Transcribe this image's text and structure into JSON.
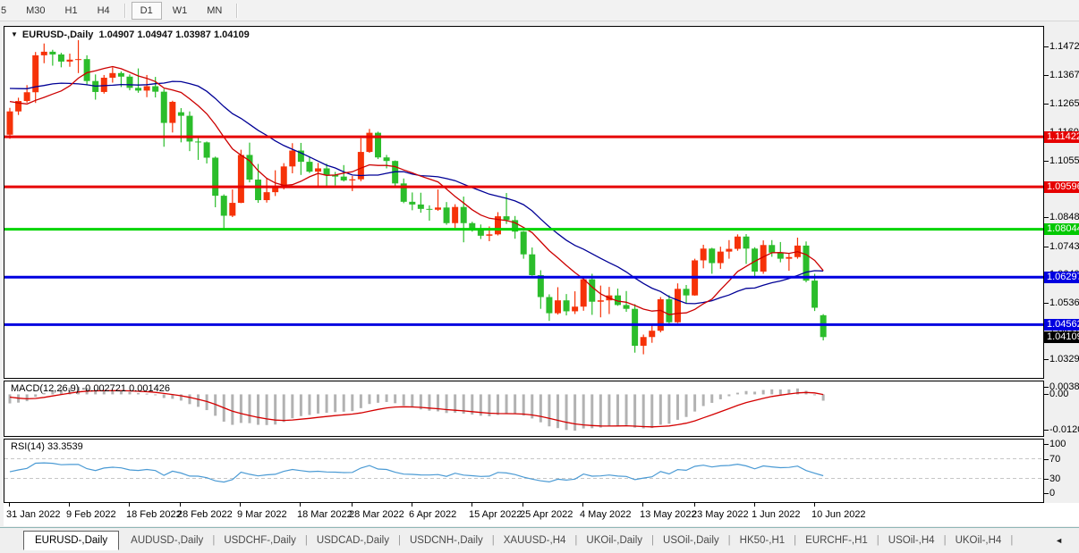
{
  "toolbar": {
    "timeframes": [
      {
        "label": "5",
        "active": false
      },
      {
        "label": "M30",
        "active": false
      },
      {
        "label": "H1",
        "active": false
      },
      {
        "label": "H4",
        "active": false
      },
      {
        "label": "D1",
        "active": true
      },
      {
        "label": "W1",
        "active": false
      },
      {
        "label": "MN",
        "active": false
      }
    ]
  },
  "chart": {
    "title": {
      "symbol": "EURUSD-,Daily",
      "ohlc": "1.04907 1.04947 1.03987 1.04109"
    },
    "price_axis": {
      "ticks": [
        "1.14720",
        "1.13670",
        "1.12650",
        "1.11600",
        "1.10550",
        "1.09530",
        "1.08480",
        "1.07430",
        "1.06400",
        "1.05360",
        "1.04310",
        "1.03290"
      ],
      "badges": [
        {
          "value": "1.11422",
          "price": 1.11422,
          "color": "#e60000"
        },
        {
          "value": "1.09596",
          "price": 1.09596,
          "color": "#e60000"
        },
        {
          "value": "1.08044",
          "price": 1.08044,
          "color": "#00c800"
        },
        {
          "value": "1.06297",
          "price": 1.06297,
          "color": "#0000e0"
        },
        {
          "value": "1.04562",
          "price": 1.04562,
          "color": "#0000e0"
        },
        {
          "value": "1.04109",
          "price": 1.04109,
          "color": "#000000"
        }
      ]
    },
    "hlines": [
      {
        "price": 1.11422,
        "color": "#e60000"
      },
      {
        "price": 1.09596,
        "color": "#e60000"
      },
      {
        "price": 1.08044,
        "color": "#00d400"
      },
      {
        "price": 1.06297,
        "color": "#0000e0"
      },
      {
        "price": 1.04562,
        "color": "#0000e0"
      }
    ],
    "dates": [
      {
        "label": "31 Jan 2022",
        "bar": 0
      },
      {
        "label": "9 Feb 2022",
        "bar": 7
      },
      {
        "label": "18 Feb 2022",
        "bar": 14
      },
      {
        "label": "28 Feb 2022",
        "bar": 20
      },
      {
        "label": "9 Mar 2022",
        "bar": 27
      },
      {
        "label": "18 Mar 2022",
        "bar": 34
      },
      {
        "label": "28 Mar 2022",
        "bar": 40
      },
      {
        "label": "6 Apr 2022",
        "bar": 47
      },
      {
        "label": "15 Apr 2022",
        "bar": 54
      },
      {
        "label": "25 Apr 2022",
        "bar": 60
      },
      {
        "label": "4 May 2022",
        "bar": 67
      },
      {
        "label": "13 May 2022",
        "bar": 74
      },
      {
        "label": "23 May 2022",
        "bar": 80
      },
      {
        "label": "1 Jun 2022",
        "bar": 87
      },
      {
        "label": "10 Jun 2022",
        "bar": 94
      }
    ],
    "ma": {
      "fast_period": 10,
      "slow_period": 20
    },
    "warmup_closes": [
      1.132,
      1.1299,
      1.1311,
      1.1286,
      1.1241,
      1.1268,
      1.1334,
      1.1294,
      1.1288,
      1.1317,
      1.1286,
      1.126,
      1.1288,
      1.1328,
      1.1323,
      1.1328,
      1.1327,
      1.1316,
      1.131,
      1.1325,
      1.137,
      1.1297,
      1.1285,
      1.1312,
      1.1295,
      1.136,
      1.1328,
      1.1367,
      1.1443,
      1.1455,
      1.1413,
      1.1406,
      1.1325,
      1.1343,
      1.1307,
      1.1344,
      1.1325,
      1.1301,
      1.124,
      1.1144,
      1.1148
    ],
    "candles": [
      [
        1.115,
        1.1248,
        1.1135,
        1.1235
      ],
      [
        1.1235,
        1.1285,
        1.1222,
        1.1273
      ],
      [
        1.1273,
        1.1331,
        1.1267,
        1.1305
      ],
      [
        1.1305,
        1.1452,
        1.1266,
        1.144
      ],
      [
        1.144,
        1.1483,
        1.1411,
        1.1453
      ],
      [
        1.1453,
        1.146,
        1.1402,
        1.1443
      ],
      [
        1.1443,
        1.1449,
        1.1396,
        1.1417
      ],
      [
        1.1417,
        1.1446,
        1.1398,
        1.1424
      ],
      [
        1.1424,
        1.1495,
        1.1375,
        1.1426
      ],
      [
        1.1426,
        1.144,
        1.133,
        1.1346
      ],
      [
        1.1346,
        1.137,
        1.1278,
        1.1306
      ],
      [
        1.1306,
        1.1368,
        1.13,
        1.1358
      ],
      [
        1.1358,
        1.1396,
        1.134,
        1.1375
      ],
      [
        1.1375,
        1.1381,
        1.1324,
        1.1362
      ],
      [
        1.1362,
        1.137,
        1.1312,
        1.1321
      ],
      [
        1.1321,
        1.1392,
        1.1303,
        1.1311
      ],
      [
        1.1311,
        1.1368,
        1.1287,
        1.1327
      ],
      [
        1.1327,
        1.1361,
        1.1286,
        1.1307
      ],
      [
        1.1307,
        1.1317,
        1.1106,
        1.1193
      ],
      [
        1.1193,
        1.1274,
        1.1158,
        1.127
      ],
      [
        1.1232,
        1.1247,
        1.1122,
        1.1219
      ],
      [
        1.1219,
        1.1235,
        1.109,
        1.1125
      ],
      [
        1.1125,
        1.1146,
        1.1058,
        1.1122
      ],
      [
        1.1122,
        1.1125,
        1.1045,
        1.1066
      ],
      [
        1.1066,
        1.107,
        1.0885,
        1.0927
      ],
      [
        1.0927,
        1.0932,
        1.0806,
        1.0854
      ],
      [
        1.0854,
        1.095,
        1.0849,
        1.0901
      ],
      [
        1.0901,
        1.1095,
        1.09,
        1.1076
      ],
      [
        1.1076,
        1.1121,
        1.0976,
        1.0986
      ],
      [
        1.0986,
        1.1043,
        1.0901,
        1.0911
      ],
      [
        1.0911,
        1.0992,
        1.0902,
        1.094
      ],
      [
        1.094,
        1.102,
        1.0926,
        1.0955
      ],
      [
        1.0955,
        1.1046,
        1.095,
        1.1034
      ],
      [
        1.1034,
        1.1119,
        1.1009,
        1.1092
      ],
      [
        1.1092,
        1.112,
        1.1003,
        1.1051
      ],
      [
        1.1051,
        1.1069,
        1.101,
        1.1015
      ],
      [
        1.1015,
        1.1047,
        1.0962,
        1.1027
      ],
      [
        1.1027,
        1.1044,
        1.0963,
        1.1004
      ],
      [
        1.1004,
        1.1014,
        1.0965,
        1.0997
      ],
      [
        1.0997,
        1.1039,
        1.0979,
        1.0983
      ],
      [
        1.0983,
        1.0999,
        1.0944,
        1.0987
      ],
      [
        1.0987,
        1.1137,
        1.098,
        1.1087
      ],
      [
        1.1087,
        1.1171,
        1.1084,
        1.1157
      ],
      [
        1.1157,
        1.1161,
        1.1061,
        1.1067
      ],
      [
        1.1067,
        1.1076,
        1.1027,
        1.1054
      ],
      [
        1.1054,
        1.1056,
        1.0961,
        1.0972
      ],
      [
        1.0972,
        1.099,
        1.09,
        1.0905
      ],
      [
        1.0905,
        1.0939,
        1.0874,
        1.0895
      ],
      [
        1.0895,
        1.0938,
        1.0865,
        1.0879
      ],
      [
        1.0879,
        1.0892,
        1.0836,
        1.0876
      ],
      [
        1.0876,
        1.095,
        1.0872,
        1.0884
      ],
      [
        1.0884,
        1.0904,
        1.0821,
        1.0827
      ],
      [
        1.0827,
        1.0896,
        1.0809,
        1.0886
      ],
      [
        1.0886,
        1.0924,
        1.0757,
        1.0827
      ],
      [
        1.0827,
        1.0832,
        1.0796,
        1.0807
      ],
      [
        1.0807,
        1.0822,
        1.0769,
        1.0781
      ],
      [
        1.0781,
        1.0815,
        1.0761,
        1.0786
      ],
      [
        1.0786,
        1.0867,
        1.0782,
        1.0852
      ],
      [
        1.0852,
        1.0937,
        1.0824,
        1.0838
      ],
      [
        1.0838,
        1.0853,
        1.077,
        1.0796
      ],
      [
        1.0796,
        1.0798,
        1.0697,
        1.0713
      ],
      [
        1.0713,
        1.0738,
        1.0635,
        1.0637
      ],
      [
        1.0637,
        1.0655,
        1.0514,
        1.0557
      ],
      [
        1.0557,
        1.0567,
        1.047,
        1.0498
      ],
      [
        1.0498,
        1.0593,
        1.0493,
        1.0545
      ],
      [
        1.0545,
        1.0568,
        1.049,
        1.0505
      ],
      [
        1.0505,
        1.0578,
        1.0495,
        1.0522
      ],
      [
        1.0522,
        1.0632,
        1.0507,
        1.0622
      ],
      [
        1.0622,
        1.0642,
        1.0492,
        1.054
      ],
      [
        1.054,
        1.0599,
        1.0483,
        1.0545
      ],
      [
        1.0545,
        1.0594,
        1.0495,
        1.0563
      ],
      [
        1.0563,
        1.0588,
        1.0525,
        1.0528
      ],
      [
        1.0528,
        1.0579,
        1.0503,
        1.0514
      ],
      [
        1.0514,
        1.0531,
        1.0354,
        1.0379
      ],
      [
        1.0379,
        1.042,
        1.0348,
        1.0411
      ],
      [
        1.0411,
        1.0457,
        1.039,
        1.0434
      ],
      [
        1.0434,
        1.0557,
        1.0428,
        1.0549
      ],
      [
        1.0549,
        1.0564,
        1.0461,
        1.0465
      ],
      [
        1.0465,
        1.0607,
        1.0462,
        1.0587
      ],
      [
        1.0587,
        1.0601,
        1.0534,
        1.0563
      ],
      [
        1.0563,
        1.0697,
        1.0562,
        1.0691
      ],
      [
        1.0691,
        1.0748,
        1.0662,
        1.0734
      ],
      [
        1.0734,
        1.0737,
        1.0642,
        1.0681
      ],
      [
        1.0681,
        1.0741,
        1.066,
        1.0723
      ],
      [
        1.0723,
        1.0765,
        1.0697,
        1.0733
      ],
      [
        1.0733,
        1.0786,
        1.0726,
        1.0778
      ],
      [
        1.0778,
        1.0787,
        1.0678,
        1.0734
      ],
      [
        1.0734,
        1.0739,
        1.0627,
        1.065
      ],
      [
        1.065,
        1.0764,
        1.0642,
        1.0747
      ],
      [
        1.0747,
        1.0765,
        1.0704,
        1.0719
      ],
      [
        1.0719,
        1.0758,
        1.0684,
        1.0697
      ],
      [
        1.0697,
        1.0715,
        1.0653,
        1.0703
      ],
      [
        1.0703,
        1.0774,
        1.0697,
        1.0745
      ],
      [
        1.0745,
        1.076,
        1.0611,
        1.0617
      ],
      [
        1.0617,
        1.0642,
        1.0506,
        1.0518
      ],
      [
        1.04907,
        1.04947,
        1.03987,
        1.04109
      ]
    ]
  },
  "macd": {
    "label": "MACD(12,26,9)",
    "values": "-0.002721 0.001426",
    "params": {
      "fast": 12,
      "slow": 26,
      "signal": 9
    },
    "axis": [
      {
        "value": "0.003865",
        "num": 0.003865
      },
      {
        "value": "0.00",
        "num": 0
      },
      {
        "value": "-0.01208",
        "num": -0.01208
      }
    ]
  },
  "rsi": {
    "label": "RSI(14)",
    "value": "33.3539",
    "period": 14,
    "levels": [
      70,
      30
    ],
    "axis": [
      {
        "value": "100",
        "num": 100
      },
      {
        "value": "70",
        "num": 70
      },
      {
        "value": "30",
        "num": 30
      },
      {
        "value": "0",
        "num": 0
      }
    ]
  },
  "tabs": {
    "items": [
      {
        "label": "EURUSD-,Daily",
        "active": true
      },
      {
        "label": "AUDUSD-,Daily",
        "active": false
      },
      {
        "label": "USDCHF-,Daily",
        "active": false
      },
      {
        "label": "USDCAD-,Daily",
        "active": false
      },
      {
        "label": "USDCNH-,Daily",
        "active": false
      },
      {
        "label": "XAUUSD-,H4",
        "active": false
      },
      {
        "label": "UKOil-,Daily",
        "active": false
      },
      {
        "label": "USOil-,Daily",
        "active": false
      },
      {
        "label": "HK50-,H1",
        "active": false
      },
      {
        "label": "EURCHF-,H1",
        "active": false
      },
      {
        "label": "USOil-,H4",
        "active": false
      },
      {
        "label": "UKOil-,H4",
        "active": false
      }
    ],
    "scroll_left": "◄",
    "scroll_right": "►"
  },
  "colors": {
    "candle_up": "#f63208",
    "candle_down": "#2bbd2b",
    "ma_fast": "#cc0000",
    "ma_slow": "#000096",
    "macd_hist": "#b2b2b2",
    "macd_signal": "#d40000",
    "rsi_line": "#4a9ad4",
    "rsi_levels": "#c6c6c6"
  }
}
